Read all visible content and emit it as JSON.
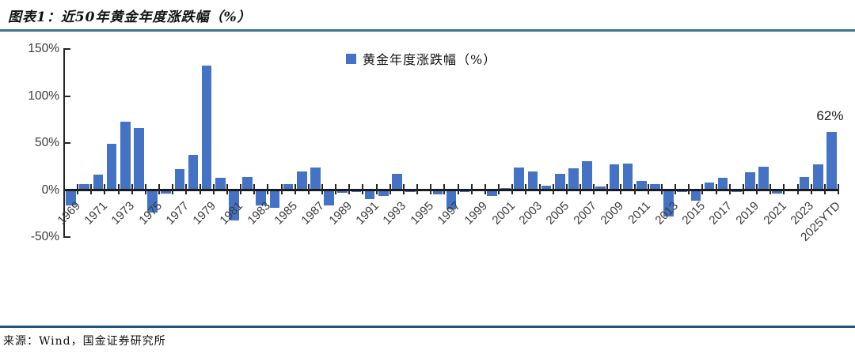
{
  "header": {
    "title": "图表1：近50年黄金年度涨跌幅（%）"
  },
  "legend": {
    "label": "黄金年度涨跌幅（%）",
    "swatch_color": "#4472c4"
  },
  "annotation": {
    "text": "62%",
    "category": "2025YTD"
  },
  "footer": {
    "source": "来源：Wind，国金证券研究所"
  },
  "colors": {
    "bar": "#4472c4",
    "title_rule": "#3e7389",
    "footer_rule": "#24557e",
    "axis": "#262626"
  },
  "chart_data": {
    "type": "bar",
    "title": "近50年黄金年度涨跌幅（%）",
    "legend_entries": [
      "黄金年度涨跌幅（%）"
    ],
    "legend_position": "top-center",
    "grid": false,
    "ylim": [
      -50,
      150
    ],
    "y_tick_values": [
      150,
      100,
      50,
      0,
      -50
    ],
    "y_tick_labels": [
      "150%",
      "100%",
      "50%",
      "0%",
      "-50%"
    ],
    "x_tick_labels": [
      "1969",
      "1971",
      "1973",
      "1975",
      "1977",
      "1979",
      "1981",
      "1983",
      "1985",
      "1987",
      "1989",
      "1991",
      "1993",
      "1995",
      "1997",
      "1999",
      "2001",
      "2003",
      "2005",
      "2007",
      "2009",
      "2011",
      "2013",
      "2015",
      "2017",
      "2019",
      "2021",
      "2023",
      "2025YTD"
    ],
    "categories": [
      "1969",
      "1970",
      "1971",
      "1972",
      "1973",
      "1974",
      "1975",
      "1976",
      "1977",
      "1978",
      "1979",
      "1980",
      "1981",
      "1982",
      "1983",
      "1984",
      "1985",
      "1986",
      "1987",
      "1988",
      "1989",
      "1990",
      "1991",
      "1992",
      "1993",
      "1994",
      "1995",
      "1996",
      "1997",
      "1998",
      "1999",
      "2000",
      "2001",
      "2002",
      "2003",
      "2004",
      "2005",
      "2006",
      "2007",
      "2008",
      "2009",
      "2010",
      "2011",
      "2012",
      "2013",
      "2014",
      "2015",
      "2016",
      "2017",
      "2018",
      "2019",
      "2020",
      "2021",
      "2022",
      "2023",
      "2024",
      "2025YTD"
    ],
    "values": [
      -16,
      6,
      16,
      49,
      73,
      66,
      -24,
      -4,
      22,
      37,
      132,
      13,
      -32,
      14,
      -16,
      -19,
      6,
      20,
      24,
      -16,
      -3,
      -2,
      -10,
      -6,
      17,
      -2,
      1,
      -5,
      -21,
      -2,
      1,
      -6,
      2,
      24,
      20,
      5,
      17,
      23,
      31,
      4,
      27,
      28,
      10,
      6,
      -28,
      -2,
      -11,
      8,
      13,
      -2,
      19,
      25,
      -4,
      -1,
      14,
      27,
      62
    ],
    "annotations": [
      {
        "category": "2025YTD",
        "text": "62%"
      }
    ]
  }
}
